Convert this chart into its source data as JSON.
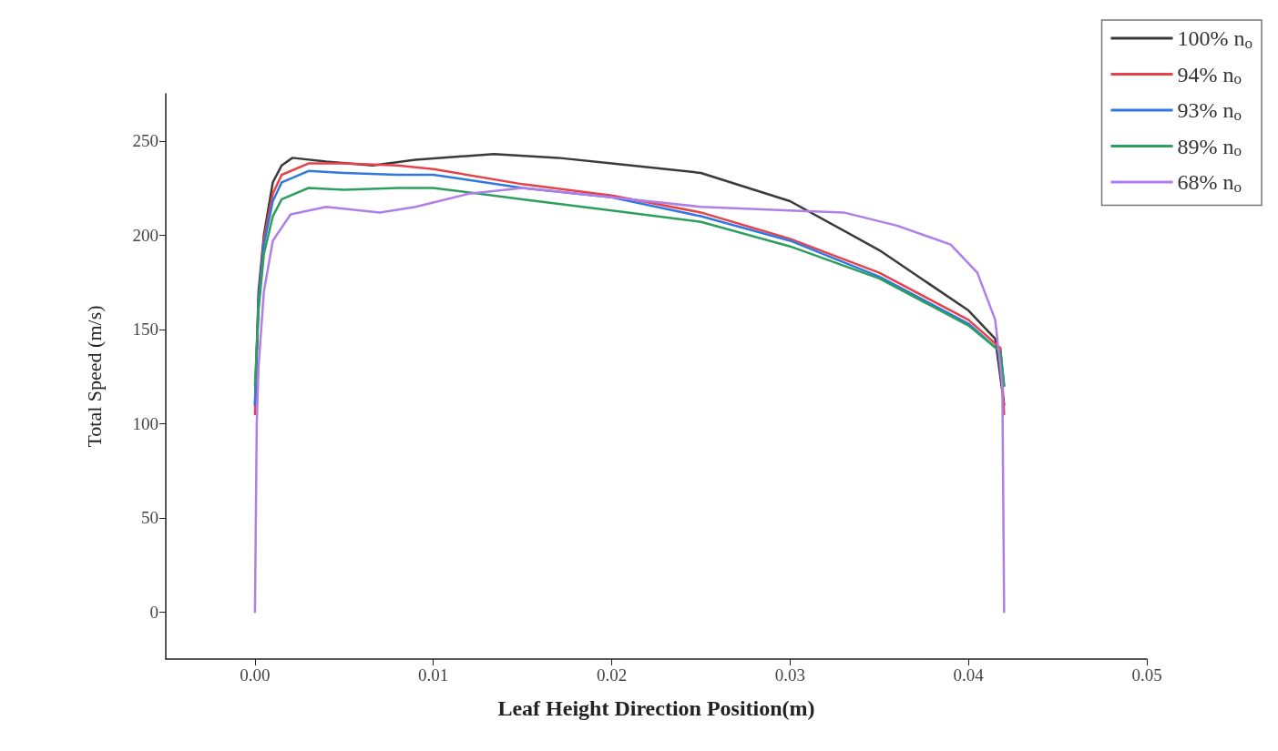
{
  "chart_data": {
    "type": "line",
    "xlabel": "Leaf Height Direction Position(m)",
    "ylabel": "Total Speed (m/s)",
    "xlim": [
      -0.005,
      0.05
    ],
    "xticks": [
      {
        "value": 0,
        "label": "0.00"
      },
      {
        "value": 0.01,
        "label": "0.01"
      },
      {
        "value": 0.02,
        "label": "0.02"
      },
      {
        "value": 0.03,
        "label": "0.03"
      },
      {
        "value": 0.04,
        "label": "0.04"
      },
      {
        "value": 0.05,
        "label": "0.05"
      }
    ],
    "ylim": [
      -25,
      275
    ],
    "yticks": [
      0,
      50,
      100,
      150,
      200,
      250
    ],
    "grid": false,
    "legend": "top right",
    "marker": "none",
    "line_style": "solid",
    "series": [
      {
        "name": "100% n$_{o}$",
        "color": "#3a3a3a",
        "x": [
          0,
          0.0002,
          0.0005,
          0.001,
          0.0015,
          0.0021,
          0.004,
          0.0066,
          0.009,
          0.0134,
          0.017,
          0.02,
          0.025,
          0.03,
          0.035,
          0.04,
          0.0415,
          0.042
        ],
        "values": [
          110,
          170,
          200,
          228,
          237,
          241,
          239,
          237,
          240,
          243,
          241,
          238,
          233,
          218,
          192,
          160,
          145,
          110
        ]
      },
      {
        "name": "94% n$_{o}$",
        "color": "#e8414a",
        "x": [
          0,
          0.0002,
          0.0005,
          0.001,
          0.0015,
          0.003,
          0.005,
          0.008,
          0.01,
          0.015,
          0.02,
          0.025,
          0.03,
          0.035,
          0.04,
          0.0418,
          0.042
        ],
        "values": [
          105,
          165,
          198,
          222,
          232,
          238,
          238,
          237,
          235,
          227,
          221,
          212,
          198,
          180,
          155,
          140,
          105
        ]
      },
      {
        "name": "93% n$_{o}$",
        "color": "#2f78e0",
        "x": [
          0,
          0.0002,
          0.0005,
          0.001,
          0.0015,
          0.003,
          0.005,
          0.008,
          0.01,
          0.015,
          0.02,
          0.025,
          0.03,
          0.035,
          0.04,
          0.0418,
          0.042
        ],
        "values": [
          110,
          165,
          195,
          218,
          228,
          234,
          233,
          232,
          232,
          225,
          220,
          210,
          197,
          178,
          153,
          138,
          120
        ]
      },
      {
        "name": "89% n$_{o}$",
        "color": "#2e9e5e",
        "x": [
          0,
          0.0002,
          0.0005,
          0.001,
          0.0015,
          0.003,
          0.005,
          0.008,
          0.01,
          0.015,
          0.02,
          0.025,
          0.03,
          0.035,
          0.04,
          0.0418,
          0.042
        ],
        "values": [
          120,
          160,
          190,
          210,
          219,
          225,
          224,
          225,
          225,
          219,
          213,
          207,
          194,
          177,
          152,
          138,
          120
        ]
      },
      {
        "name": "68% n$_{o}$",
        "color": "#b07ee8",
        "x": [
          0,
          0.0001,
          0.0002,
          0.0005,
          0.001,
          0.002,
          0.004,
          0.007,
          0.009,
          0.012,
          0.015,
          0.02,
          0.025,
          0.03,
          0.033,
          0.036,
          0.039,
          0.0405,
          0.0415,
          0.0419,
          0.042
        ],
        "values": [
          0,
          100,
          130,
          170,
          197,
          211,
          215,
          212,
          215,
          222,
          225,
          220,
          215,
          213,
          212,
          205,
          195,
          180,
          155,
          120,
          0
        ]
      }
    ]
  }
}
